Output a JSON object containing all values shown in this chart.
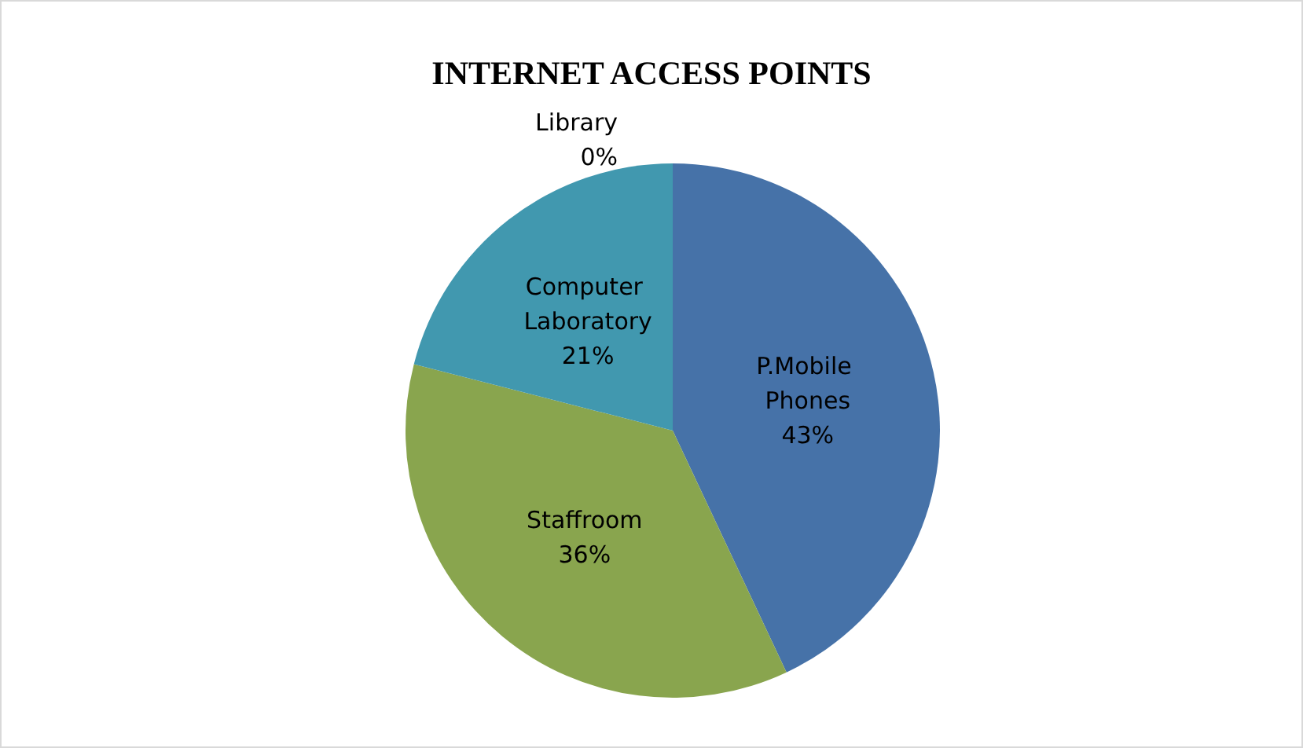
{
  "chart_data": {
    "type": "pie",
    "title": "INTERNET ACCESS POINTS",
    "categories": [
      "P.Mobile Phones",
      "Staffroom",
      "Computer Laboratory",
      "Library"
    ],
    "values": [
      43,
      36,
      21,
      0
    ],
    "colors": [
      "#4672a8",
      "#89a54e",
      "#4198af",
      "#71588f"
    ],
    "value_labels": [
      "43%",
      "36%",
      "21%",
      "0%"
    ],
    "legend": false
  }
}
